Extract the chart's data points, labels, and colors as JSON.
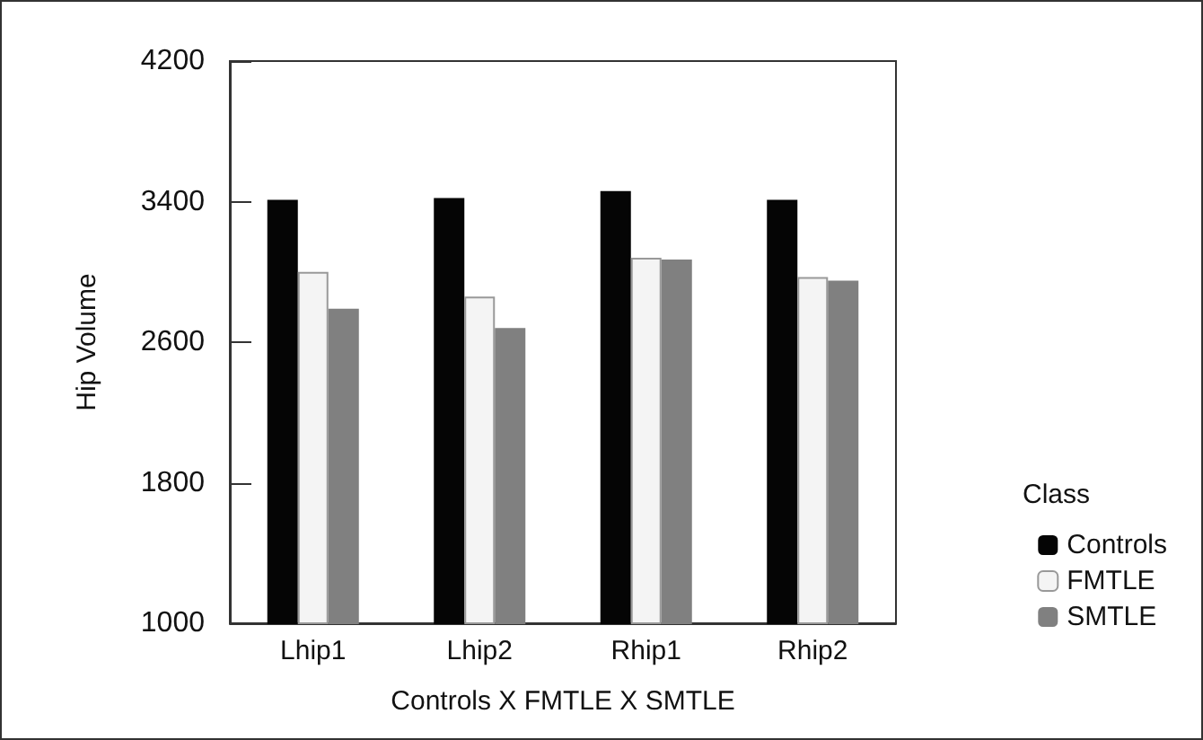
{
  "chart_data": {
    "type": "bar",
    "xlabel": "Controls X FMTLE X SMTLE",
    "ylabel": "Hip Volume",
    "legend_title": "Class",
    "categories": [
      "Lhip1",
      "Lhip2",
      "Rhip1",
      "Rhip2"
    ],
    "series": [
      {
        "name": "Controls",
        "color": "#050505",
        "values": [
          3410,
          3420,
          3460,
          3410
        ]
      },
      {
        "name": "FMTLE",
        "color": "#f4f4f4",
        "values": [
          3000,
          2860,
          3080,
          2970
        ]
      },
      {
        "name": "SMTLE",
        "color": "#808080",
        "values": [
          2790,
          2680,
          3070,
          2950
        ]
      }
    ],
    "ylim": [
      1000,
      4200
    ],
    "yticks": [
      1000,
      1800,
      2600,
      3400,
      4200
    ],
    "grid": false,
    "legend": "right"
  }
}
